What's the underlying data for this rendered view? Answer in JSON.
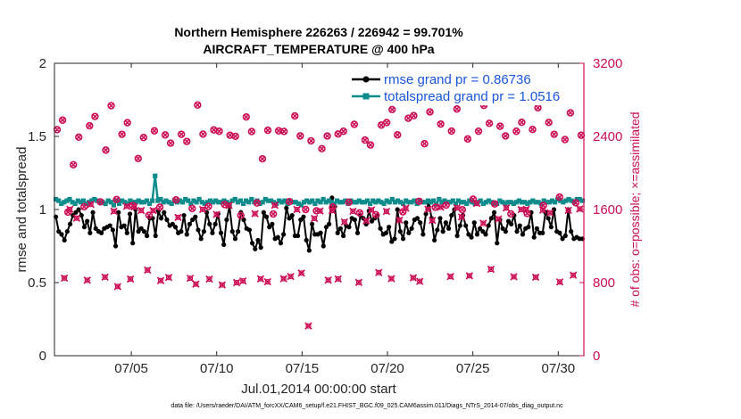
{
  "chart_data": {
    "type": "line",
    "title_line1": "Northern Hemisphere 226263 / 226942 = 99.701%",
    "title_line2": "AIRCRAFT_TEMPERATURE @ 400 hPa",
    "xlabel": "Jul.01,2014 00:00:00 start",
    "ylabel": "rmse and totalspread",
    "y2label": "# of obs: o=possible; ×=assimilated",
    "xlim": [
      0.5,
      31.5
    ],
    "ylim": [
      0,
      2
    ],
    "y2lim": [
      0,
      3200
    ],
    "x_ticks": [
      {
        "value": 5,
        "label": "07/05"
      },
      {
        "value": 10,
        "label": "07/10"
      },
      {
        "value": 15,
        "label": "07/15"
      },
      {
        "value": 20,
        "label": "07/20"
      },
      {
        "value": 25,
        "label": "07/25"
      },
      {
        "value": 30,
        "label": "07/30"
      }
    ],
    "y_ticks": [
      "0",
      "0.5",
      "1",
      "1.5",
      "2"
    ],
    "y2_ticks": [
      "0",
      "800",
      "1600",
      "2400",
      "3200"
    ],
    "grid": false,
    "legend_position": "top-right",
    "series": [
      {
        "name": "rmse grand pr = 0.86736",
        "color": "#000000",
        "marker": "circle",
        "axis": "left",
        "values": [
          0.95,
          0.85,
          0.83,
          0.79,
          0.85,
          0.9,
          0.96,
          0.98,
          1.0,
          0.96,
          0.88,
          0.92,
          0.84,
          0.98,
          0.87,
          0.85,
          0.84,
          0.87,
          0.88,
          0.89,
          0.86,
          0.75,
          0.98,
          0.88,
          0.89,
          0.84,
          0.97,
          0.77,
          1.0,
          0.85,
          0.87,
          0.85,
          0.82,
          0.94,
          0.94,
          0.82,
          0.99,
          0.94,
          0.98,
          0.93,
          0.89,
          0.9,
          0.88,
          0.84,
          0.85,
          0.96,
          0.83,
          0.9,
          0.93,
          0.95,
          0.86,
          0.8,
          0.85,
          0.98,
          0.9,
          0.84,
          0.9,
          0.97,
          0.84,
          0.76,
          0.93,
          1.02,
          0.85,
          0.8,
          0.85,
          0.98,
          0.93,
          0.87,
          0.86,
          0.77,
          0.73,
          0.79,
          0.74,
          0.98,
          0.95,
          0.88,
          0.9,
          0.8,
          0.81,
          0.77,
          0.83,
          1.01,
          0.94,
          0.96,
          0.82,
          0.82,
          0.93,
          0.95,
          0.79,
          0.72,
          0.9,
          0.83,
          0.83,
          0.84,
          0.75,
          0.88,
          0.9,
          1.08,
          1.02,
          0.84,
          0.87,
          0.82,
          0.89,
          0.88,
          0.94,
          0.93,
          0.84,
          0.96,
          0.94,
          0.9,
          0.99,
          0.92,
          0.94,
          0.96,
          0.87,
          0.83,
          0.84,
          0.88,
          0.78,
          0.8,
          1.0,
          0.85,
          0.8,
          0.91,
          0.84,
          0.87,
          0.93,
          0.94,
          0.91,
          0.83,
          0.97,
          1.06,
          0.94,
          0.79,
          0.86,
          0.94,
          0.85,
          0.91,
          0.87,
          0.96,
          1.0,
          0.82,
          0.89,
          0.96,
          0.89,
          0.83,
          0.81,
          0.91,
          0.83,
          0.87,
          0.85,
          0.83,
          0.89,
          0.94,
          0.98,
          0.77,
          0.93,
          0.87,
          0.85,
          0.92,
          0.9,
          0.96,
          0.85,
          0.89,
          0.83,
          0.87,
          0.88,
          0.98,
          0.81,
          0.87,
          0.84,
          0.84,
          0.98,
          0.94,
          0.88,
          1.0,
          0.85,
          0.84,
          0.8,
          0.82,
          1.0,
          0.85,
          0.8,
          0.81,
          0.8,
          0.8
        ]
      },
      {
        "name": "totalspread grand pr = 1.0516",
        "color": "#0e8c8c",
        "marker": "square",
        "axis": "left",
        "values": [
          1.07,
          1.06,
          1.04,
          1.05,
          1.06,
          1.07,
          1.05,
          1.04,
          1.06,
          1.05,
          1.06,
          1.04,
          1.05,
          1.06,
          1.07,
          1.06,
          1.05,
          1.05,
          1.04,
          1.06,
          1.05,
          1.03,
          1.06,
          1.04,
          1.06,
          1.05,
          1.04,
          1.06,
          1.05,
          1.05,
          1.06,
          1.05,
          1.05,
          1.06,
          1.04,
          1.06,
          1.23,
          1.06,
          1.07,
          1.05,
          1.06,
          1.05,
          1.04,
          1.06,
          1.05,
          1.06,
          1.05,
          1.07,
          1.06,
          1.04,
          1.06,
          1.05,
          1.07,
          1.05,
          1.04,
          1.05,
          1.06,
          1.05,
          1.06,
          1.05,
          1.05,
          1.06,
          1.05,
          1.04,
          1.06,
          1.07,
          1.05,
          1.06,
          1.04,
          1.06,
          1.05,
          1.07,
          1.05,
          1.06,
          1.04,
          1.05,
          1.07,
          1.06,
          1.06,
          1.05,
          1.04,
          1.06,
          1.05,
          1.06,
          1.04,
          1.06,
          1.05,
          1.05,
          1.04,
          1.03,
          1.05,
          1.06,
          1.05,
          1.06,
          1.04,
          1.06,
          1.05,
          1.07,
          1.05,
          1.06,
          1.05,
          1.04,
          1.06,
          1.05,
          1.05,
          1.06,
          1.04,
          1.06,
          1.05,
          1.05,
          1.06,
          1.05,
          1.05,
          1.06,
          1.04,
          1.06,
          1.05,
          1.06,
          1.05,
          1.04,
          1.06,
          1.05,
          1.07,
          1.05,
          1.06,
          1.05,
          1.04,
          1.06,
          1.05,
          1.05,
          1.06,
          1.04,
          1.06,
          1.05,
          1.05,
          1.06,
          1.05,
          1.06,
          1.04,
          1.07,
          1.05,
          1.06,
          1.05,
          1.05,
          1.06,
          1.04,
          1.06,
          1.05,
          1.05,
          1.04,
          1.06,
          1.05,
          1.04,
          1.05,
          1.06,
          1.04,
          1.05,
          1.06,
          1.05,
          1.04,
          1.04,
          1.06,
          1.05,
          1.04,
          1.05,
          1.05,
          1.04,
          1.05,
          1.06,
          1.05,
          1.05,
          1.04,
          1.05,
          1.06,
          1.05,
          1.05,
          1.04,
          1.06,
          1.05,
          1.05,
          1.06,
          1.05,
          1.07,
          1.06,
          1.05,
          1.06,
          1.07,
          1.06,
          1.05,
          1.07,
          1.07,
          1.06
        ]
      },
      {
        "name": "obs possible",
        "color": "#cc0f56",
        "marker": "circle-open",
        "axis": "right",
        "values": [
          2474,
          2578,
          1572,
          2090,
          2392,
          1630,
          2516,
          2618,
          1684,
          2250,
          2736,
          1709,
          2423,
          2550,
          1643,
          2158,
          2388,
          1537,
          2461,
          1625,
          2416,
          2326,
          1705,
          2423,
          2345,
          1611,
          2743,
          2425,
          1633,
          2471,
          2456,
          1655,
          2413,
          2401,
          1535,
          2613,
          2453,
          1672,
          2154,
          2467,
          1551,
          2461,
          2454,
          1686,
          2624,
          2405,
          1600,
          2351,
          1586,
          2265,
          2404,
          1627,
          2426,
          2456,
          1680,
          2532,
          1563,
          2360,
          2306,
          1543,
          2524,
          2552,
          2693,
          2417,
          1574,
          2598,
          2627,
          1690,
          2320,
          2668,
          1624,
          2535,
          1648,
          2458,
          2700,
          1598,
          2372,
          1713,
          2457,
          2740,
          2543,
          1661,
          2511,
          2405,
          1552,
          2456,
          2554,
          1557,
          2476,
          2713,
          1645,
          2553,
          2423,
          1736,
          2365,
          2658,
          1674,
          2413
        ]
      },
      {
        "name": "obs assimilated",
        "color": "#cc0f56",
        "marker": "x",
        "axis": "right",
        "days": [
          1.08,
          1.4,
          1.8,
          2.42,
          2.63,
          3.46,
          3.98,
          4.2,
          4.73,
          4.95,
          5.17,
          5.58,
          5.95,
          6.28,
          6.72,
          7.19,
          7.74,
          8.45,
          8.78,
          9.18,
          9.57,
          9.99,
          10.32,
          10.72,
          11.17,
          11.54,
          12.24,
          12.57,
          12.98,
          13.4,
          13.92,
          14.33,
          14.7,
          14.96,
          15.37,
          15.72,
          16.05,
          16.53,
          16.76,
          17.11,
          17.48,
          17.98,
          18.32,
          18.76,
          19.06,
          19.49,
          19.94,
          20.23,
          20.7,
          21.07,
          21.51,
          21.89,
          22.37,
          22.63,
          23.11,
          23.69,
          24.07,
          24.34,
          24.8,
          25.23,
          25.61,
          26.06,
          26.5,
          26.96,
          27.4,
          27.83,
          28.13,
          28.68,
          29.1,
          29.52,
          30.09,
          30.59,
          30.88,
          31.26
        ],
        "values": [
          849,
          1602,
          1505,
          826,
          1656,
          860,
          1581,
          757,
          1635,
          839,
          1628,
          1589,
          937,
          1588,
          822,
          856,
          1514,
          847,
          784,
          1601,
          838,
          1546,
          775,
          1645,
          800,
          818,
          1554,
          841,
          809,
          1647,
          843,
          866,
          1600,
          904,
          326,
          1502,
          1584,
          827,
          1589,
          840,
          1464,
          1581,
          802,
          1476,
          1595,
          910,
          1579,
          843,
          1484,
          1614,
          853,
          814,
          1602,
          1481,
          1625,
          866,
          1618,
          1518,
          875,
          1666,
          1449,
          946,
          1497,
          1617,
          864,
          1599,
          1602,
          859,
          1594,
          1564,
          807,
          1591,
          881,
          1606
        ]
      }
    ],
    "footer": "data file: /Users/raeder/DAI/ATM_forcXX/CAM6_setup/f.e21.FHIST_BGC.f09_025.CAM6assim.011/Diags_NTrS_2014-07/obs_diag_output.nc"
  }
}
